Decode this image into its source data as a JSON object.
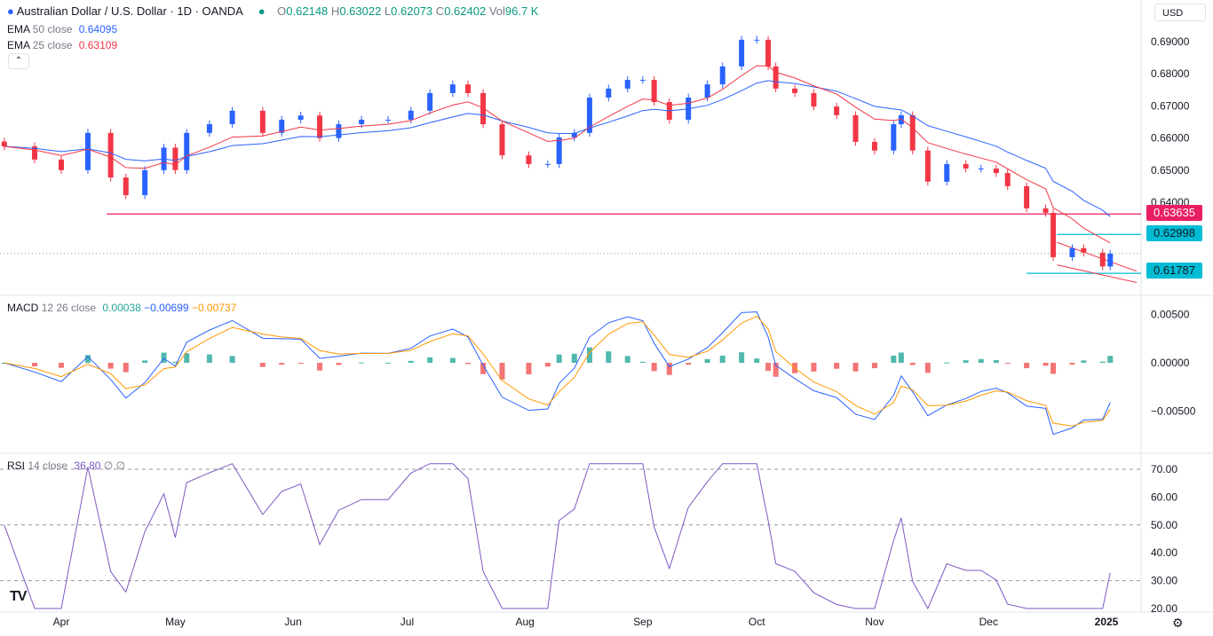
{
  "header": {
    "symbol_title": "Australian Dollar / U.S. Dollar · 1D · OANDA",
    "open_label": "O",
    "open": "0.62148",
    "high_label": "H",
    "high": "0.63022",
    "low_label": "L",
    "low": "0.62073",
    "close_label": "C",
    "close": "0.62402",
    "vol_label": "Vol",
    "vol": "96.7 K",
    "ema50_label": "EMA",
    "ema50_params": "50 close",
    "ema50_value": "0.64095",
    "ema25_label": "EMA",
    "ema25_params": "25 close",
    "ema25_value": "0.63109",
    "collapse_icon": "chevron-up-icon",
    "currency_button": "USD"
  },
  "macd_legend": {
    "label": "MACD",
    "params": "12 26 close",
    "hist": "0.00038",
    "macd": "−0.00699",
    "signal": "−0.00737"
  },
  "rsi_legend": {
    "label": "RSI",
    "params": "14 close",
    "value": "36.80",
    "extra": "∅ ∅"
  },
  "price_labels": {
    "red_level": "0.63635",
    "upper_level": "0.62998",
    "lower_level": "0.61787"
  },
  "colors": {
    "up": "#2962ff",
    "down": "#f23645",
    "ema50": "#2962ff",
    "ema25": "#f23645",
    "macd": "#2962ff",
    "signal": "#ff9800",
    "hist_up": "#26a69a",
    "hist_down": "#ef5350",
    "rsi": "#7e57c2",
    "level_red": "#e91e63",
    "level_cyan": "#00bcd4"
  },
  "chart_data": [
    {
      "type": "candlestick",
      "title": "Australian Dollar / U.S. Dollar · 1D · OANDA",
      "ylim": [
        0.615,
        0.695
      ],
      "y_ticks": [
        "0.69000",
        "0.68000",
        "0.67000",
        "0.66000",
        "0.65000",
        "0.64000"
      ],
      "x_ticks": [
        "Apr",
        "May",
        "Jun",
        "Jul",
        "Aug",
        "Sep",
        "Oct",
        "Nov",
        "Dec",
        "2025"
      ],
      "x_tick_dates": [
        "2024-04-01",
        "2024-05-01",
        "2024-06-01",
        "2024-07-01",
        "2024-08-01",
        "2024-09-01",
        "2024-10-01",
        "2024-11-01",
        "2024-12-01",
        "2025-01-01"
      ],
      "closes": [
        [
          "2024-03-17",
          0.6574
        ],
        [
          "2024-03-25",
          0.6533
        ],
        [
          "2024-04-01",
          0.65
        ],
        [
          "2024-04-08",
          0.6616
        ],
        [
          "2024-04-14",
          0.6477
        ],
        [
          "2024-04-18",
          0.6422
        ],
        [
          "2024-04-23",
          0.65
        ],
        [
          "2024-04-28",
          0.657
        ],
        [
          "2024-05-01",
          0.65
        ],
        [
          "2024-05-04",
          0.6616
        ],
        [
          "2024-05-10",
          0.6643
        ],
        [
          "2024-05-16",
          0.6685
        ],
        [
          "2024-05-24",
          0.6616
        ],
        [
          "2024-05-29",
          0.6657
        ],
        [
          "2024-06-03",
          0.667
        ],
        [
          "2024-06-08",
          0.66
        ],
        [
          "2024-06-13",
          0.6643
        ],
        [
          "2024-06-19",
          0.6657
        ],
        [
          "2024-06-26",
          0.6657
        ],
        [
          "2024-07-02",
          0.6685
        ],
        [
          "2024-07-07",
          0.674
        ],
        [
          "2024-07-13",
          0.6767
        ],
        [
          "2024-07-17",
          0.674
        ],
        [
          "2024-07-21",
          0.6643
        ],
        [
          "2024-07-26",
          0.6546
        ],
        [
          "2024-08-02",
          0.6519
        ],
        [
          "2024-08-07",
          0.6519
        ],
        [
          "2024-08-10",
          0.6602
        ],
        [
          "2024-08-14",
          0.6616
        ],
        [
          "2024-08-18",
          0.6726
        ],
        [
          "2024-08-23",
          0.6754
        ],
        [
          "2024-08-28",
          0.6781
        ],
        [
          "2024-09-01",
          0.6781
        ],
        [
          "2024-09-04",
          0.6712
        ],
        [
          "2024-09-08",
          0.6657
        ],
        [
          "2024-09-13",
          0.6726
        ],
        [
          "2024-09-18",
          0.6767
        ],
        [
          "2024-09-22",
          0.6823
        ],
        [
          "2024-09-27",
          0.6906
        ],
        [
          "2024-10-01",
          0.6906
        ],
        [
          "2024-10-04",
          0.6823
        ],
        [
          "2024-10-06",
          0.6754
        ],
        [
          "2024-10-11",
          0.674
        ],
        [
          "2024-10-16",
          0.6698
        ],
        [
          "2024-10-22",
          0.6671
        ],
        [
          "2024-10-27",
          0.6588
        ],
        [
          "2024-11-01",
          0.6561
        ],
        [
          "2024-11-06",
          0.6643
        ],
        [
          "2024-11-08",
          0.6671
        ],
        [
          "2024-11-11",
          0.6561
        ],
        [
          "2024-11-15",
          0.6464
        ],
        [
          "2024-11-20",
          0.6519
        ],
        [
          "2024-11-25",
          0.6505
        ],
        [
          "2024-11-29",
          0.6505
        ],
        [
          "2024-12-03",
          0.6491
        ],
        [
          "2024-12-06",
          0.645
        ],
        [
          "2024-12-11",
          0.6381
        ],
        [
          "2024-12-16",
          0.6367
        ],
        [
          "2024-12-18",
          0.6229
        ],
        [
          "2024-12-23",
          0.6257
        ],
        [
          "2024-12-26",
          0.6243
        ],
        [
          "2024-12-31",
          0.62
        ],
        [
          "2025-01-02",
          0.624
        ]
      ],
      "last_price": 0.62402,
      "annotations": {
        "horizontal_lines": [
          {
            "price": 0.63635,
            "from": "2024-04-13",
            "color": "#e91e63"
          },
          {
            "price": 0.62998,
            "from": "2024-12-19",
            "color": "#00bcd4"
          },
          {
            "price": 0.61787,
            "from": "2024-12-11",
            "color": "#00bcd4"
          }
        ],
        "channel": [
          {
            "from": [
              "2024-12-19",
              0.6275
            ],
            "to": [
              "2025-01-09",
              0.6185
            ]
          },
          {
            "from": [
              "2024-12-19",
              0.6205
            ],
            "to": [
              "2025-01-09",
              0.615
            ]
          }
        ]
      },
      "series": [
        {
          "name": "EMA 50 close"
        },
        {
          "name": "EMA 25 close"
        }
      ]
    },
    {
      "type": "line",
      "title": "MACD 12 26 close",
      "ylim": [
        -0.0085,
        0.0065
      ],
      "y_ticks": [
        "0.00500",
        "0.00000",
        "−0.00500"
      ],
      "y_tick_values": [
        0.005,
        0,
        -0.005
      ]
    },
    {
      "type": "line",
      "title": "RSI 14 close",
      "ylim": [
        17,
        72
      ],
      "y_ticks": [
        "70.00",
        "60.00",
        "50.00",
        "40.00",
        "30.00",
        "20.00"
      ],
      "y_tick_values": [
        70,
        60,
        50,
        40,
        30,
        20
      ],
      "bands": [
        70,
        50,
        30
      ]
    }
  ]
}
